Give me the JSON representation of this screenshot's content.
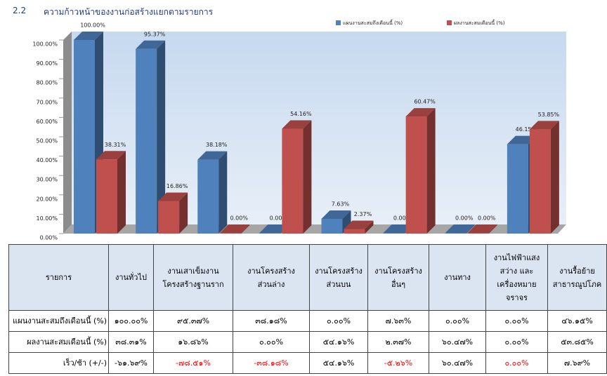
{
  "section": {
    "number": "2.2",
    "title": "ความก้าวหน้าของงานก่อสร้างแยกตามรายการ"
  },
  "chart_data": {
    "type": "bar3d",
    "categories": [
      null,
      null,
      null,
      null,
      null,
      null,
      null,
      null
    ],
    "series": [
      {
        "name": "แผนงานสะสมถึงเดือนนี้ (%)",
        "color": "#4f81bd",
        "values": [
          100,
          95.37,
          38.18,
          0,
          7.63,
          0,
          0,
          46.15
        ],
        "value_labels": [
          "100.00%",
          "95.37%",
          "38.18%",
          "0.00%",
          "7.63%",
          "0.00%",
          "0.00%",
          "46.15%"
        ]
      },
      {
        "name": "ผลงานสะสมเดือนนี้ (%)",
        "color": "#c0504d",
        "values": [
          38.31,
          16.86,
          0,
          54.16,
          2.37,
          60.47,
          0,
          53.85
        ],
        "value_labels": [
          "38.31%",
          "16.86%",
          "0.00%",
          "54.16%",
          "2.37%",
          "60.47%",
          "0.00%",
          "53.85%"
        ]
      }
    ],
    "ylim": [
      0,
      100
    ],
    "yticks": [
      {
        "value": 0,
        "label": "0.00%"
      },
      {
        "value": 10,
        "label": "10.00%"
      },
      {
        "value": 20,
        "label": "20.00%"
      },
      {
        "value": 30,
        "label": "30.00%"
      },
      {
        "value": 40,
        "label": "40.00%"
      },
      {
        "value": 50,
        "label": "50.00%"
      },
      {
        "value": 60,
        "label": "60.00%"
      },
      {
        "value": 70,
        "label": "70.00%"
      },
      {
        "value": 80,
        "label": "80.00%"
      },
      {
        "value": 90,
        "label": "90.00%"
      },
      {
        "value": 100,
        "label": "100.00%"
      }
    ],
    "legend": "top-right"
  },
  "table": {
    "header": [
      "รายการ",
      "งานทั่วไป",
      "งานเสาเข็มงาน\nโครงสร้างฐานราก",
      "งานโครงสร้าง\nส่วนล่าง",
      "งานโครงสร้าง\nส่วนบน",
      "งานโครงสร้าง\nอื่นๆ",
      "งานทาง",
      "งานไฟฟ้าแสง\nสว่าง และ\nเครื่องหมาย\nจราจร",
      "งานรื้อย้าย\nสาธารณูปโภค"
    ],
    "rows": [
      [
        "แผนงานสะสมถึงเดือนนี้ (%)",
        "๑๐๐.๐๐%",
        "๙๕.๓๗%",
        "๓๘.๑๘%",
        "๐.๐๐%",
        "๗.๖๓%",
        "๐.๐๐%",
        "๐.๐๐%",
        "๔๖.๑๕%"
      ],
      [
        "ผลงานสะสมเดือนนี้ (%)",
        "๓๘.๓๑%",
        "๑๖.๘๖%",
        "๐.๐๐%",
        "๕๔.๑๖%",
        "๒.๓๗%",
        "๖๐.๔๗%",
        "๐.๐๐%",
        "๕๓.๘๕%"
      ],
      [
        "เร็ว/ช้า (+/-)",
        "-๖๑.๖๙%",
        "-๗๘.๕๑%",
        "-๓๘.๑๘%",
        "๕๔.๑๖%",
        "-๕.๒๖%",
        "๖๐.๔๗%",
        "๐.๐๐%",
        "๗.๖๙%"
      ]
    ]
  }
}
